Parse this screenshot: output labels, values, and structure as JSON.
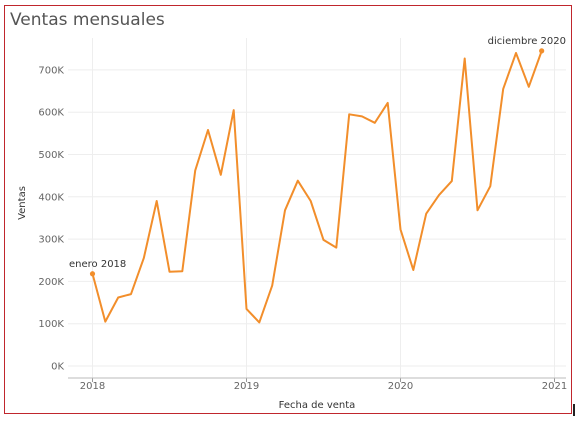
{
  "chart_data": {
    "type": "line",
    "title": "Ventas mensuales",
    "xlabel": "Fecha de venta",
    "ylabel": "Ventas",
    "x_ticks": [
      "2018",
      "2019",
      "2020",
      "2021"
    ],
    "y_ticks": [
      "0K",
      "100K",
      "200K",
      "300K",
      "400K",
      "500K",
      "600K",
      "700K"
    ],
    "ylim": [
      0,
      760000
    ],
    "xlim": [
      "2017-11",
      "2021-01"
    ],
    "grid": true,
    "color": "#f28e2b",
    "series": [
      {
        "x": [
          "2018-01",
          "2018-02",
          "2018-03",
          "2018-04",
          "2018-05",
          "2018-06",
          "2018-07",
          "2018-08",
          "2018-09",
          "2018-10",
          "2018-11",
          "2018-12",
          "2019-01",
          "2019-02",
          "2019-03",
          "2019-04",
          "2019-05",
          "2019-06",
          "2019-07",
          "2019-08",
          "2019-09",
          "2019-10",
          "2019-11",
          "2019-12",
          "2020-01",
          "2020-02",
          "2020-03",
          "2020-04",
          "2020-05",
          "2020-06",
          "2020-07",
          "2020-08",
          "2020-09",
          "2020-10",
          "2020-11",
          "2020-12"
        ],
        "values": [
          218000,
          105000,
          162000,
          170000,
          255000,
          390000,
          223000,
          224000,
          462000,
          558000,
          452000,
          605000,
          135000,
          103000,
          190000,
          368000,
          438000,
          390000,
          298000,
          280000,
          595000,
          590000,
          575000,
          622000,
          323000,
          227000,
          360000,
          404000,
          437000,
          727000,
          368000,
          425000,
          655000,
          740000,
          660000,
          745000
        ]
      }
    ],
    "annotations": [
      {
        "text": "enero 2018",
        "x": "2018-01",
        "y": 218000
      },
      {
        "text": "diciembre 2020",
        "x": "2020-12",
        "y": 745000
      }
    ]
  }
}
